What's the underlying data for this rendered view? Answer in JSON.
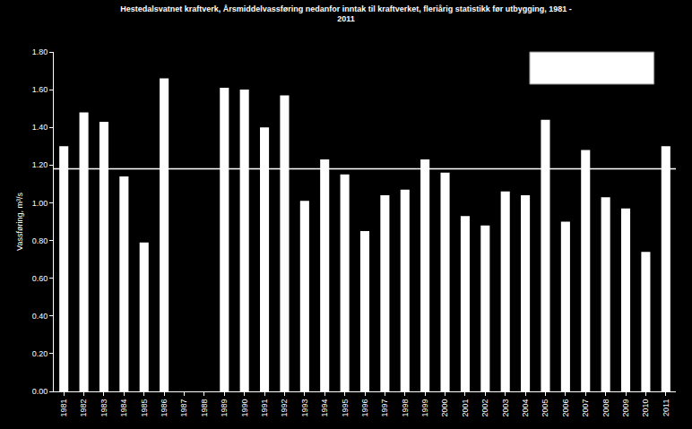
{
  "chart_data": {
    "type": "bar",
    "title": [
      "Hestedalsvatnet kraftverk, Årsmiddelvassføring nedanfor inntak til kraftverket, fleriårig statistikk før utbygging, 1981 -",
      "2011"
    ],
    "y_label": "Vassføring, m³/s",
    "categories": [
      "1981",
      "1982",
      "1983",
      "1984",
      "1985",
      "1986",
      "1987",
      "1988",
      "1989",
      "1990",
      "1991",
      "1992",
      "1993",
      "1994",
      "1995",
      "1996",
      "1997",
      "1998",
      "1999",
      "2000",
      "2001",
      "2002",
      "2003",
      "2004",
      "2005",
      "2006",
      "2007",
      "2008",
      "2009",
      "2010",
      "2011"
    ],
    "values": [
      1.3,
      1.48,
      1.43,
      1.14,
      0.79,
      1.66,
      null,
      null,
      1.61,
      1.6,
      1.4,
      1.57,
      1.01,
      1.23,
      1.15,
      0.85,
      1.04,
      1.07,
      1.23,
      1.16,
      0.93,
      0.88,
      1.06,
      1.04,
      1.44,
      0.9,
      1.28,
      1.03,
      0.97,
      0.74,
      1.3
    ],
    "color": "#ffffff",
    "reference_line": {
      "value": 1.18,
      "color": "#ffffff"
    },
    "ylim": [
      0,
      1.8
    ],
    "yticks": [
      {
        "value": 0,
        "label": "0.00"
      },
      {
        "value": 0.2,
        "label": "0.20"
      },
      {
        "value": 0.4,
        "label": "0.40"
      },
      {
        "value": 0.6,
        "label": "0.60"
      },
      {
        "value": 0.8,
        "label": "0.80"
      },
      {
        "value": 1.0,
        "label": "1.00"
      },
      {
        "value": 1.2,
        "label": "1.20"
      },
      {
        "value": 1.4,
        "label": "1.40"
      },
      {
        "value": 1.6,
        "label": "1.60"
      },
      {
        "value": 1.8,
        "label": "1.80"
      }
    ],
    "grid": false
  }
}
